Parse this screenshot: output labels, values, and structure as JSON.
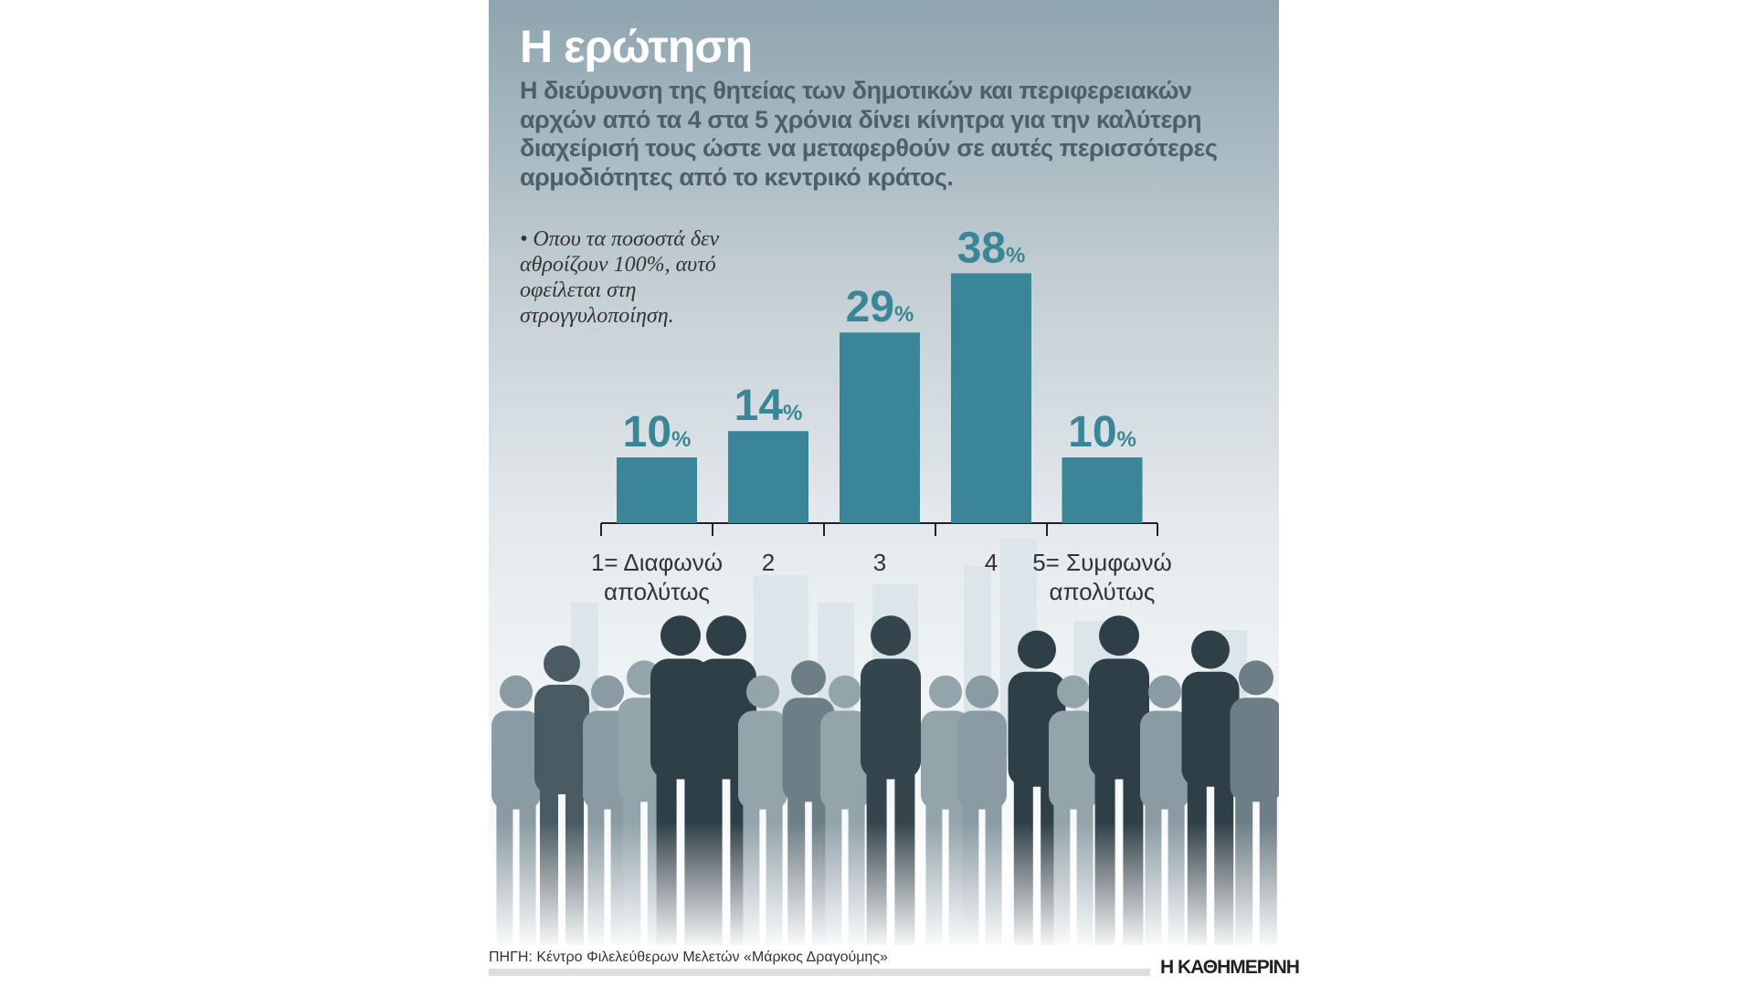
{
  "title": "Η ερώτηση",
  "question": "Η διεύρυνση της θητείας των δημοτικών και περιφερειακών αρχών από τα 4 στα 5 χρόνια δίνει κίνητρα για την καλύτερη διαχείρισή τους ώστε να μεταφερθούν σε αυτές περισσότερες αρμοδιότητες από το κεντρικό κράτος.",
  "note": "• Οπου τα ποσοστά δεν αθροίζουν 100%, αυτό οφείλεται στη στρογγυλοποίηση.",
  "source": "ΠΗΓΗ: Κέντρο Φιλελεύθερων Μελετών «Μάρκος Δραγούμης»",
  "brand": "Η ΚΑΘΗΜΕΡΙΝΗ",
  "colors": {
    "bar": "#3a8698",
    "label": "#3a8698"
  },
  "chart_data": {
    "type": "bar",
    "categories": [
      "1= Διαφωνώ απολύτως",
      "2",
      "3",
      "4",
      "5= Συμφωνώ απολύτως"
    ],
    "values": [
      10,
      14,
      29,
      38,
      10
    ],
    "unit": "%",
    "ylim": [
      0,
      40
    ]
  }
}
